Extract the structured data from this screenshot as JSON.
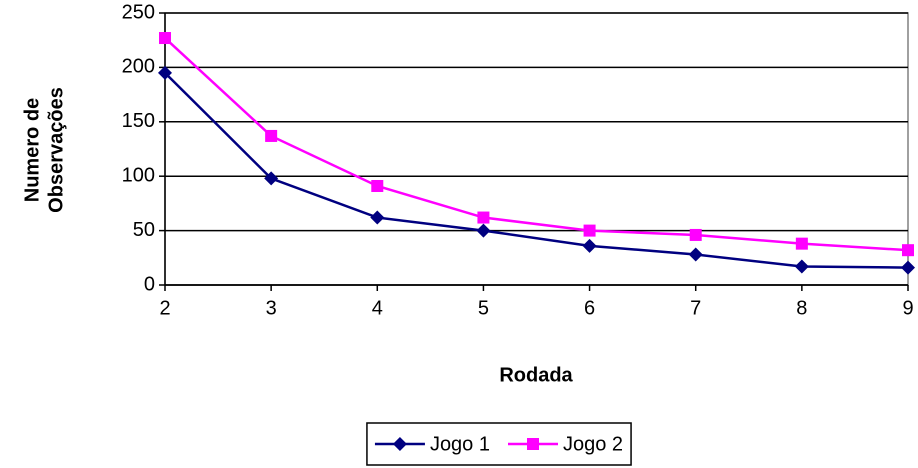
{
  "chart_data": {
    "type": "line",
    "ylabel": [
      "Numero de",
      "Observações"
    ],
    "xlabel": "Rodada",
    "x": [
      2,
      3,
      4,
      5,
      6,
      7,
      8,
      9
    ],
    "xlim": [
      2,
      9
    ],
    "xticks": [
      2,
      3,
      4,
      5,
      6,
      7,
      8,
      9
    ],
    "ylim": [
      0,
      250
    ],
    "yticks": [
      0,
      50,
      100,
      150,
      200,
      250
    ],
    "grid": true,
    "legend": "bottom",
    "series": [
      {
        "name": "Jogo 1",
        "color": "#000080",
        "marker": "diamond",
        "values": [
          195,
          98,
          62,
          50,
          36,
          28,
          17,
          16
        ]
      },
      {
        "name": "Jogo 2",
        "color": "#ff00ff",
        "marker": "square",
        "values": [
          227,
          137,
          91,
          62,
          50,
          46,
          38,
          32
        ]
      }
    ]
  }
}
